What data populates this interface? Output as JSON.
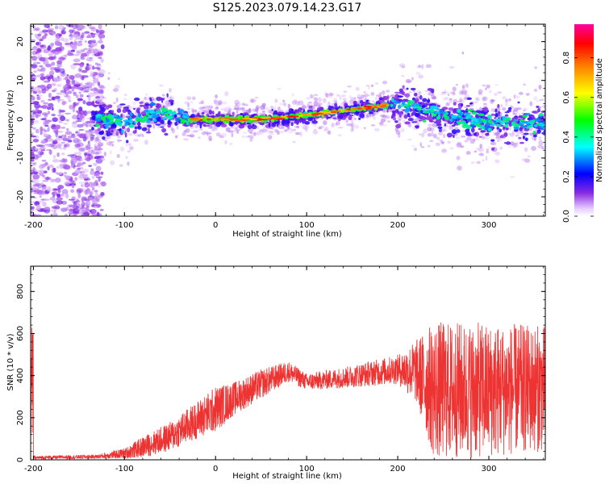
{
  "title": "S125.2023.079.14.23.G17",
  "chart_data": [
    {
      "type": "heatmap",
      "xlabel": "Height of straight line (km)",
      "ylabel": "Frequency (Hz)",
      "xlim": [
        -203,
        362
      ],
      "ylim": [
        -25,
        24.5
      ],
      "xticks": [
        -200,
        -100,
        0,
        100,
        200,
        300
      ],
      "yticks": [
        -20,
        -10,
        0,
        10,
        20
      ],
      "description_of_ridge": [
        {
          "x": -125,
          "y": 0
        },
        {
          "x": -100,
          "y": -1
        },
        {
          "x": -60,
          "y": 2
        },
        {
          "x": -30,
          "y": 0
        },
        {
          "x": 0,
          "y": 0
        },
        {
          "x": 50,
          "y": 0
        },
        {
          "x": 100,
          "y": 1
        },
        {
          "x": 150,
          "y": 2.5
        },
        {
          "x": 200,
          "y": 4
        },
        {
          "x": 250,
          "y": 1
        },
        {
          "x": 300,
          "y": -1
        },
        {
          "x": 362,
          "y": -1
        }
      ],
      "colorbar": {
        "label": "Normalized spectral amplitude",
        "range": [
          0,
          0.97
        ],
        "ticks": [
          0.0,
          0.2,
          0.4,
          0.6,
          0.8
        ]
      }
    },
    {
      "type": "line",
      "xlabel": "Height of straight line (km)",
      "ylabel": "SNR (10 * v/v)",
      "xlim": [
        -203,
        362
      ],
      "ylim": [
        0,
        920
      ],
      "xticks": [
        -200,
        -100,
        0,
        100,
        200,
        300
      ],
      "yticks": [
        0,
        200,
        400,
        600,
        800
      ],
      "color": "#ee3333",
      "envelope": [
        {
          "x": -200,
          "mean": 10,
          "spread": 8
        },
        {
          "x": -130,
          "mean": 15,
          "spread": 10
        },
        {
          "x": -100,
          "mean": 30,
          "spread": 25
        },
        {
          "x": -80,
          "mean": 60,
          "spread": 50
        },
        {
          "x": -50,
          "mean": 110,
          "spread": 70
        },
        {
          "x": -20,
          "mean": 190,
          "spread": 90
        },
        {
          "x": 0,
          "mean": 240,
          "spread": 110
        },
        {
          "x": 20,
          "mean": 290,
          "spread": 80
        },
        {
          "x": 50,
          "mean": 360,
          "spread": 70
        },
        {
          "x": 80,
          "mean": 420,
          "spread": 50
        },
        {
          "x": 100,
          "mean": 370,
          "spread": 40
        },
        {
          "x": 140,
          "mean": 390,
          "spread": 50
        },
        {
          "x": 200,
          "mean": 430,
          "spread": 70
        },
        {
          "x": 220,
          "mean": 420,
          "spread": 150
        },
        {
          "x": 240,
          "mean": 330,
          "spread": 330
        },
        {
          "x": 300,
          "mean": 330,
          "spread": 320
        },
        {
          "x": 362,
          "mean": 340,
          "spread": 300
        }
      ]
    }
  ]
}
